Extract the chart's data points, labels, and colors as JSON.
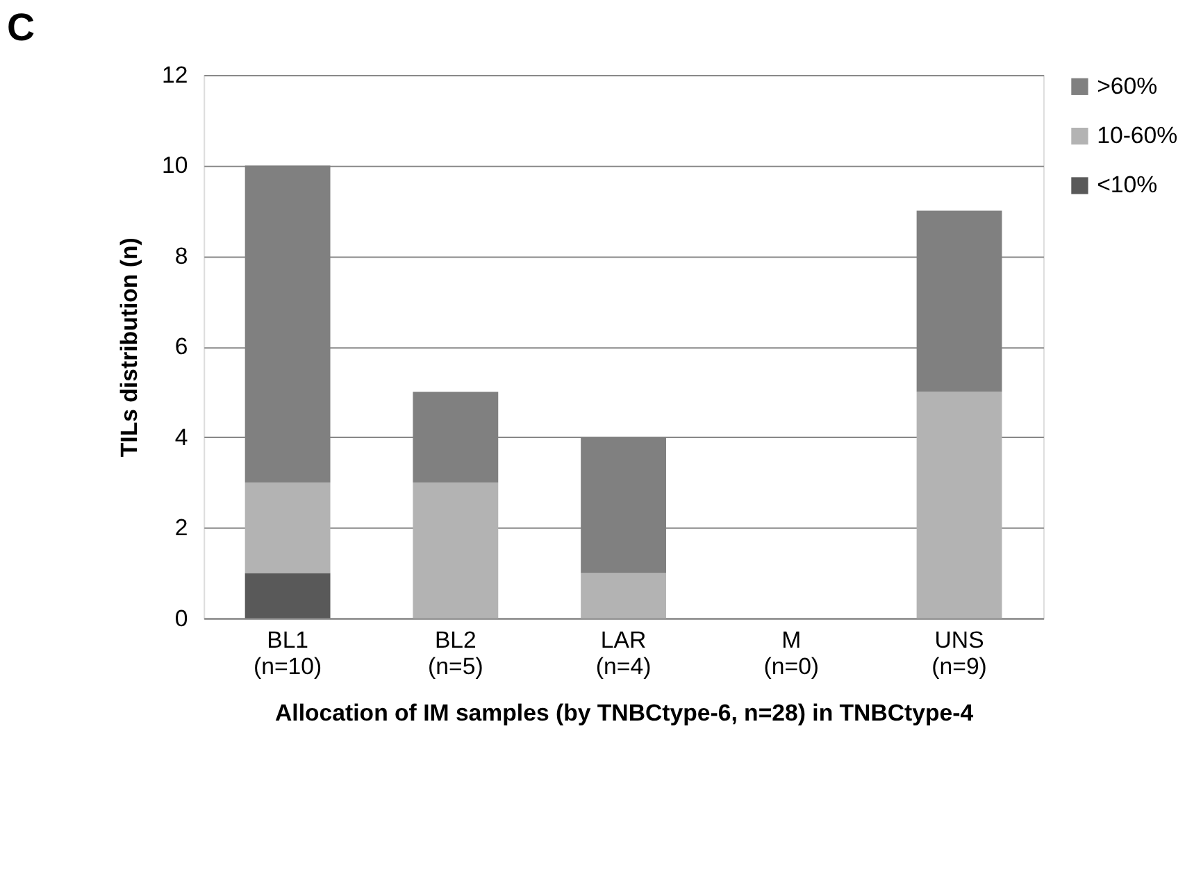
{
  "chart_data": {
    "type": "bar",
    "stacked": true,
    "annotations": [
      "C"
    ],
    "xlabel": "Allocation of IM samples (by TNBCtype-6, n=28) in TNBCtype-4",
    "ylabel": "TILs distribution (n)",
    "categories": [
      "BL1\n(n=10)",
      "BL2\n(n=5)",
      "LAR\n(n=4)",
      "M\n(n=0)",
      "UNS\n(n=9)"
    ],
    "series": [
      {
        "name": "<10%",
        "color": "#595959",
        "values": [
          1,
          0,
          0,
          0,
          0
        ]
      },
      {
        "name": "10-60%",
        "color": "#b3b3b3",
        "values": [
          2,
          3,
          1,
          0,
          5
        ]
      },
      {
        "name": ">60%",
        "color": "#808080",
        "values": [
          7,
          2,
          3,
          0,
          4
        ]
      }
    ],
    "ylim": [
      0,
      12
    ],
    "yticks": [
      0,
      2,
      4,
      6,
      8,
      10,
      12
    ],
    "grid": "y",
    "legend": "top right"
  }
}
